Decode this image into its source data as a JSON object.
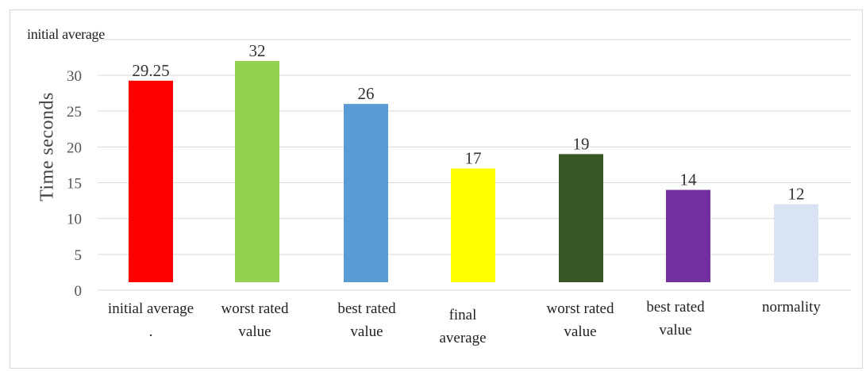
{
  "chart_data": {
    "type": "bar",
    "title": "",
    "xlabel": "",
    "ylabel": "Time seconds",
    "ylim": [
      0,
      30
    ],
    "yticks": [
      0,
      5,
      10,
      15,
      20,
      25,
      30
    ],
    "grid": true,
    "corner_label": "initial average",
    "categories": [
      [
        "initial average",
        "."
      ],
      [
        "worst rated",
        "value"
      ],
      [
        "best rated",
        "value"
      ],
      [
        "final",
        "average"
      ],
      [
        "worst rated",
        "value"
      ],
      [
        "best rated",
        "value"
      ],
      [
        "normality"
      ]
    ],
    "values": [
      29.25,
      32,
      26,
      17,
      19,
      14,
      12
    ],
    "value_labels": [
      "29.25",
      "32",
      "26",
      "17",
      "19",
      "14",
      "12"
    ],
    "colors": [
      "#ff0000",
      "#92d050",
      "#5b9bd5",
      "#ffff00",
      "#375623",
      "#7030a0",
      "#dae3f3"
    ]
  }
}
